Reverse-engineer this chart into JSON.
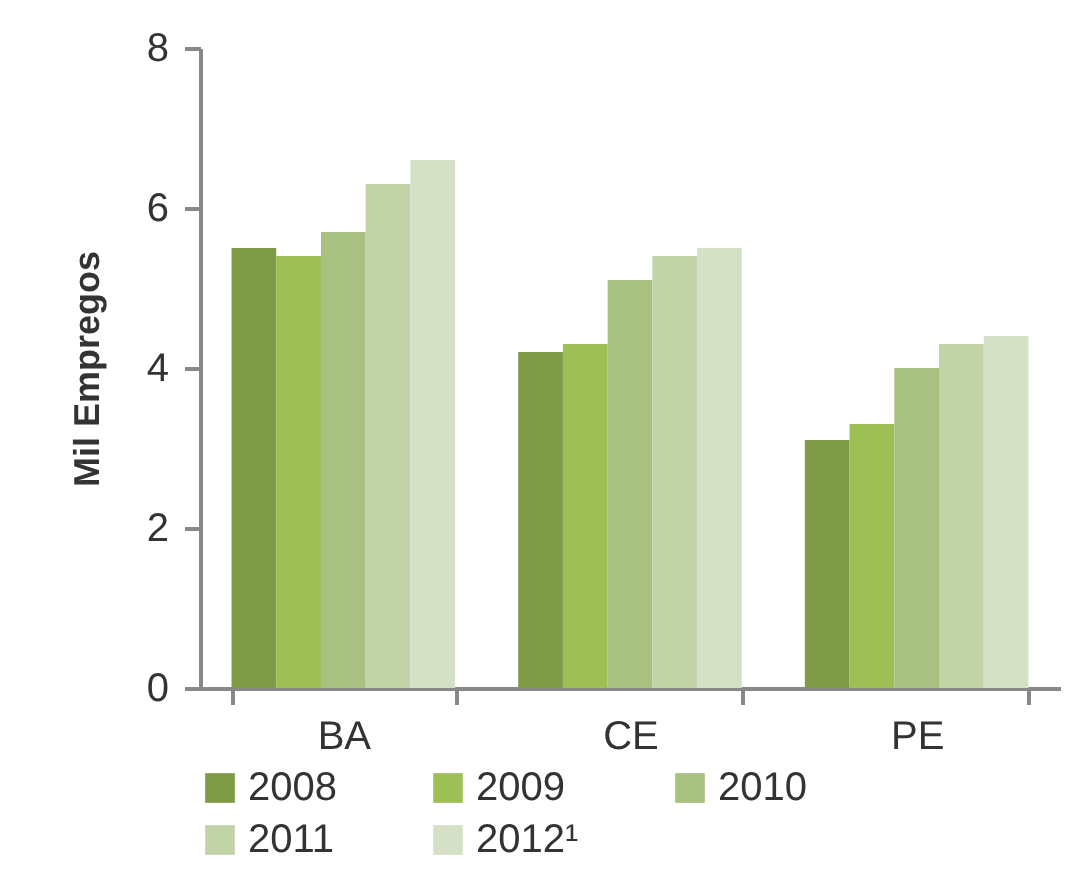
{
  "chart_data": {
    "type": "bar",
    "ylabel": "Mil Empregos",
    "categories": [
      "BA",
      "CE",
      "PE"
    ],
    "series": [
      {
        "name": "2008",
        "color": "#7f9b45",
        "values": [
          5.5,
          4.2,
          3.1
        ]
      },
      {
        "name": "2009",
        "color": "#9dbf55",
        "values": [
          5.4,
          4.3,
          3.3
        ]
      },
      {
        "name": "2010",
        "color": "#a8c181",
        "values": [
          5.7,
          5.1,
          4.0
        ]
      },
      {
        "name": "2011",
        "color": "#c3d3a8",
        "values": [
          6.3,
          5.4,
          4.3
        ]
      },
      {
        "name": "2012¹",
        "color": "#d5e1c6",
        "values": [
          6.6,
          5.5,
          4.4
        ]
      }
    ],
    "ylim": [
      0,
      8
    ],
    "yticks": [
      0,
      2,
      4,
      6,
      8
    ],
    "grid": false,
    "legend": "bottom"
  }
}
